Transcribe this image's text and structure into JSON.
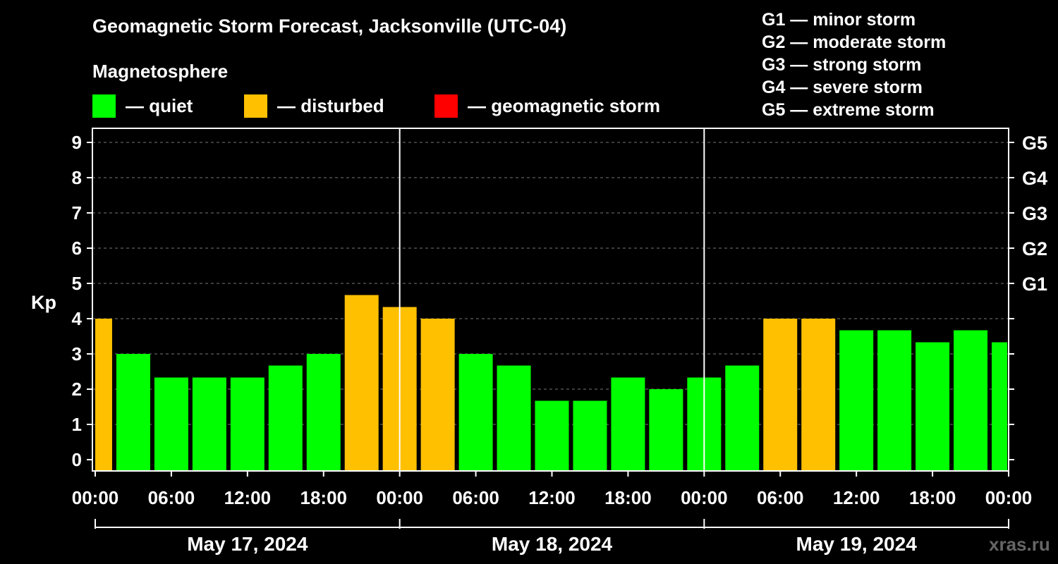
{
  "title": "Geomagnetic Storm Forecast, Jacksonville (UTC-04)",
  "subtitle": "Magnetosphere",
  "legend": [
    {
      "label": "— quiet",
      "color": "#00ff00"
    },
    {
      "label": "— disturbed",
      "color": "#ffc000"
    },
    {
      "label": "— geomagnetic storm",
      "color": "#ff0000"
    }
  ],
  "g_levels": [
    "G1 — minor storm",
    "G2 — moderate storm",
    "G3 — strong storm",
    "G4 — severe storm",
    "G5 — extreme storm"
  ],
  "watermark": "xras.ru",
  "chart_data": {
    "type": "bar",
    "ylabel": "Kp",
    "ylim": [
      0,
      9
    ],
    "y_ticks": [
      "0",
      "1",
      "2",
      "3",
      "4",
      "5",
      "6",
      "7",
      "8",
      "9"
    ],
    "right_ticks": [
      {
        "kp": 5,
        "label": "G1"
      },
      {
        "kp": 6,
        "label": "G2"
      },
      {
        "kp": 7,
        "label": "G3"
      },
      {
        "kp": 8,
        "label": "G4"
      },
      {
        "kp": 9,
        "label": "G5"
      }
    ],
    "grid": "horizontal dashed",
    "x_tick_labels": [
      "00:00",
      "06:00",
      "12:00",
      "18:00",
      "00:00",
      "06:00",
      "12:00",
      "18:00",
      "00:00",
      "06:00",
      "12:00",
      "18:00",
      "00:00"
    ],
    "day_labels": [
      "May 17, 2024",
      "May 18, 2024",
      "May 19, 2024"
    ],
    "bar_hours": [
      0,
      3,
      6,
      9,
      12,
      15,
      18,
      21,
      24,
      27,
      30,
      33,
      36,
      39,
      42,
      45,
      48,
      51,
      54,
      57,
      60,
      63,
      66,
      69,
      72
    ],
    "values": [
      4.0,
      3.0,
      2.33,
      2.33,
      2.33,
      2.67,
      3.0,
      4.67,
      4.33,
      4.0,
      3.0,
      2.67,
      1.67,
      1.67,
      2.33,
      2.0,
      2.33,
      2.67,
      4.0,
      4.0,
      3.67,
      3.67,
      3.33,
      3.67,
      3.33
    ],
    "statuses": [
      "disturbed",
      "quiet",
      "quiet",
      "quiet",
      "quiet",
      "quiet",
      "quiet",
      "disturbed",
      "disturbed",
      "disturbed",
      "quiet",
      "quiet",
      "quiet",
      "quiet",
      "quiet",
      "quiet",
      "quiet",
      "quiet",
      "disturbed",
      "disturbed",
      "quiet",
      "quiet",
      "quiet",
      "quiet",
      "quiet"
    ],
    "status_colors": {
      "quiet": "#00ff00",
      "disturbed": "#ffc000",
      "storm": "#ff0000"
    },
    "x_range_hours": [
      0,
      72
    ]
  }
}
